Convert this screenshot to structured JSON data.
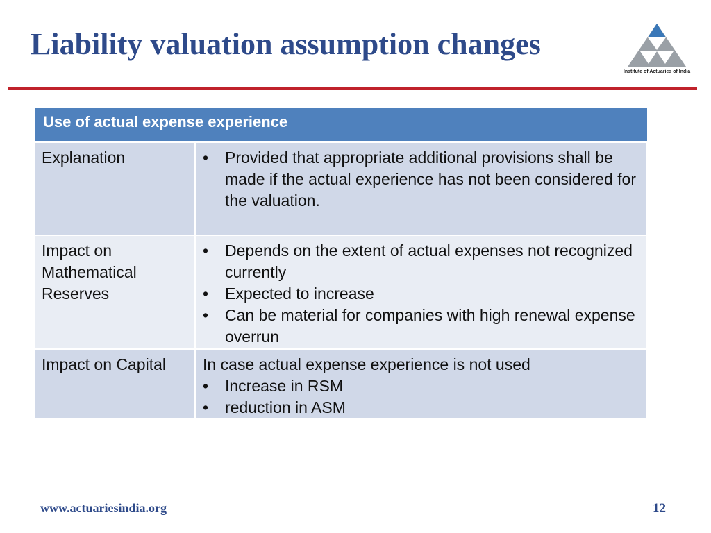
{
  "slide": {
    "title": "Liability valuation assumption changes",
    "logo_caption": "Institute of Actuaries of India",
    "footer_url": "www.actuariesindia.org",
    "page_number": "12"
  },
  "table": {
    "header": "Use of actual expense experience",
    "rows": [
      {
        "label": "Explanation",
        "lead": "",
        "bullets": [
          "Provided that appropriate additional provisions shall be made if the actual experience has not been considered for the valuation."
        ]
      },
      {
        "label": "Impact on Mathematical Reserves",
        "lead": "",
        "bullets": [
          "Depends on the extent of actual expenses not recognized currently",
          "Expected to increase",
          "Can be material for companies with high renewal expense overrun"
        ]
      },
      {
        "label": "Impact on Capital",
        "lead": "In case actual expense experience is not used",
        "bullets": [
          "Increase in RSM",
          "reduction in ASM"
        ]
      }
    ]
  },
  "colors": {
    "title": "#2e4a8a",
    "rule": "#c0222b",
    "header_bg": "#4f81bd",
    "row_dark": "#d0d8e8",
    "row_light": "#e9edf4"
  }
}
